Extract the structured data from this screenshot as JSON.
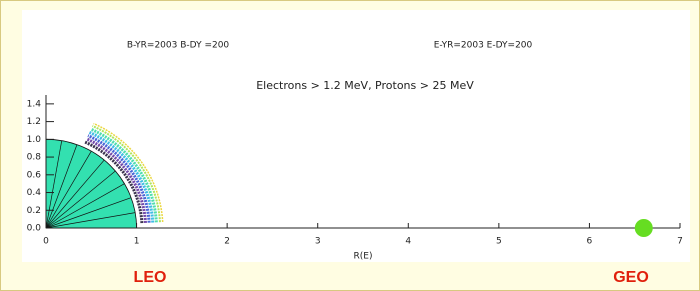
{
  "chart_data": {
    "type": "scatter",
    "annotations": [
      "B-YR=2003 B-DY =200",
      "E-YR=2003 E-DY=200"
    ],
    "title": "Electrons > 1.2 MeV, Protons > 25 MeV",
    "xlabel": "R(E)",
    "xlim": [
      0,
      7
    ],
    "xticks": [
      0,
      1,
      2,
      3,
      4,
      5,
      6,
      7
    ],
    "ylim": [
      0,
      1.5
    ],
    "yticks": [
      {
        "value": 0,
        "label": "0.0"
      },
      {
        "value": 0.2,
        "label": "0.2"
      },
      {
        "value": 0.4,
        "label": "0.4"
      },
      {
        "value": 0.6,
        "label": "0.6"
      },
      {
        "value": 0.8,
        "label": "0.8"
      },
      {
        "value": 1,
        "label": "1.0"
      },
      {
        "value": 1.2,
        "label": "1.2"
      },
      {
        "value": 1.4,
        "label": "1.4"
      }
    ],
    "x": [
      6.6
    ],
    "values": [
      0
    ],
    "color": "#66dd22",
    "orbit_labels": [
      "LEO",
      "GEO"
    ]
  }
}
